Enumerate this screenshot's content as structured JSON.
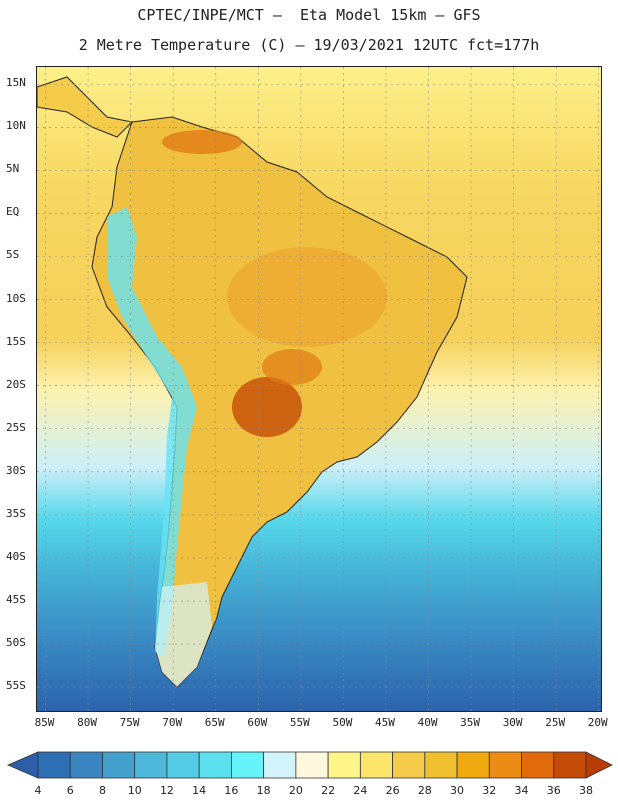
{
  "header": {
    "title_line1": "CPTEC/INPE/MCT –  Eta Model 15km – GFS",
    "title_line2": "2 Metre Temperature (C) – 19/03/2021 12UTC fct=177h"
  },
  "map": {
    "lat_ticks": [
      "15N",
      "10N",
      "5N",
      "EQ",
      "5S",
      "10S",
      "15S",
      "20S",
      "25S",
      "30S",
      "35S",
      "40S",
      "45S",
      "50S",
      "55S"
    ],
    "lat_values": [
      15,
      10,
      5,
      0,
      -5,
      -10,
      -15,
      -20,
      -25,
      -30,
      -35,
      -40,
      -45,
      -50,
      -55
    ],
    "lon_ticks": [
      "85W",
      "80W",
      "75W",
      "70W",
      "65W",
      "60W",
      "55W",
      "50W",
      "45W",
      "40W",
      "35W",
      "30W",
      "25W",
      "20W"
    ],
    "lon_values": [
      -85,
      -80,
      -75,
      -70,
      -65,
      -60,
      -55,
      -50,
      -45,
      -40,
      -35,
      -30,
      -25,
      -20
    ],
    "extent": {
      "lon_min": -86,
      "lon_max": -19.5,
      "lat_min": -58,
      "lat_max": 17
    }
  },
  "legend": {
    "labels": [
      "4",
      "6",
      "8",
      "10",
      "12",
      "14",
      "16",
      "18",
      "20",
      "22",
      "24",
      "26",
      "28",
      "30",
      "32",
      "34",
      "36",
      "38"
    ],
    "colors": [
      "#2c6fb3",
      "#3a85bf",
      "#44a0cc",
      "#4fb8da",
      "#54cce6",
      "#5be0ee",
      "#66f4fb",
      "#d4f4fb",
      "#fdf8de",
      "#fdf48a",
      "#fde46a",
      "#f5cc4a",
      "#f0c030",
      "#f0aa10",
      "#ec8c14",
      "#e06a0c",
      "#c44a08"
    ],
    "under_color": "#2c5fa8",
    "over_color": "#b83c06"
  }
}
